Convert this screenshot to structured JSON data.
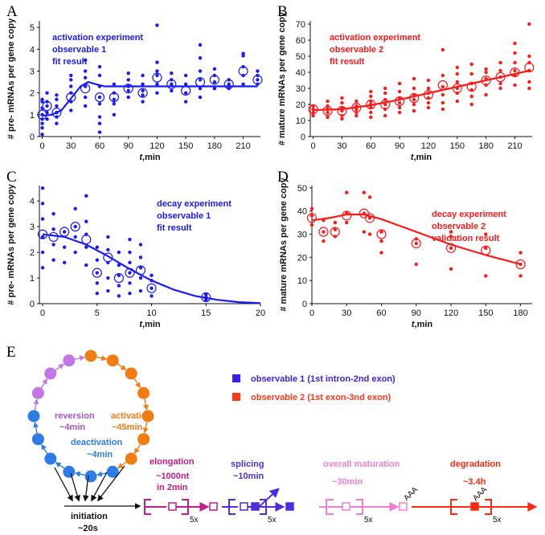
{
  "chart_data": [
    {
      "panel": "A",
      "type": "scatter",
      "color": "#1a1aff",
      "annotation": [
        "activation experiment",
        "observable 1",
        "fit result"
      ],
      "xlabel": "t,min",
      "ylabel": "# pre- mRNAs per gene copy",
      "xlim": [
        -3,
        228
      ],
      "ylim": [
        0,
        5.3
      ],
      "xticks": [
        0,
        30,
        60,
        90,
        120,
        150,
        180,
        210
      ],
      "yticks": [
        0,
        1,
        2,
        3,
        4,
        5
      ],
      "grid": false,
      "replicates": [
        {
          "x": 0,
          "y": [
            0.1,
            0.4,
            0.6,
            0.8,
            1.0,
            1.3,
            1.6,
            1.7
          ]
        },
        {
          "x": 5,
          "y": [
            0.8,
            1.1,
            1.4,
            1.6,
            2.0
          ]
        },
        {
          "x": 15,
          "y": [
            0.6,
            0.9,
            1.1,
            1.4,
            1.7,
            1.9
          ]
        },
        {
          "x": 30,
          "y": [
            1.2,
            1.6,
            2.0,
            2.3,
            2.6,
            2.8
          ]
        },
        {
          "x": 45,
          "y": [
            1.4,
            1.8,
            2.3,
            2.7,
            3.0,
            3.5
          ]
        },
        {
          "x": 60,
          "y": [
            0.2,
            0.6,
            0.9,
            1.5,
            1.8,
            2.3,
            2.8,
            3.2
          ]
        },
        {
          "x": 75,
          "y": [
            1.0,
            1.5,
            1.7,
            2.0,
            2.4
          ]
        },
        {
          "x": 90,
          "y": [
            1.8,
            2.1,
            2.3,
            2.6,
            2.9
          ]
        },
        {
          "x": 105,
          "y": [
            1.6,
            1.9,
            2.1,
            2.4,
            2.8
          ]
        },
        {
          "x": 120,
          "y": [
            2.0,
            2.4,
            2.8,
            3.0,
            3.4,
            5.1
          ]
        },
        {
          "x": 135,
          "y": [
            2.1,
            2.4,
            2.6,
            2.9
          ]
        },
        {
          "x": 150,
          "y": [
            1.6,
            2.0,
            2.4,
            2.8
          ]
        },
        {
          "x": 165,
          "y": [
            1.8,
            2.2,
            2.6,
            3.0,
            3.6,
            4.2
          ]
        },
        {
          "x": 180,
          "y": [
            2.2,
            2.5,
            2.8,
            3.1
          ]
        },
        {
          "x": 195,
          "y": [
            2.2,
            2.4,
            2.6
          ]
        },
        {
          "x": 210,
          "y": [
            2.4,
            2.8,
            3.2,
            3.7,
            3.8
          ]
        },
        {
          "x": 225,
          "y": [
            2.4,
            2.6,
            2.8,
            3.0
          ]
        }
      ],
      "means": [
        {
          "x": 0,
          "y": 1.0
        },
        {
          "x": 5,
          "y": 1.4
        },
        {
          "x": 15,
          "y": 1.1
        },
        {
          "x": 30,
          "y": 1.8
        },
        {
          "x": 45,
          "y": 2.2
        },
        {
          "x": 60,
          "y": 1.8
        },
        {
          "x": 75,
          "y": 1.8
        },
        {
          "x": 90,
          "y": 2.2
        },
        {
          "x": 105,
          "y": 2.0
        },
        {
          "x": 120,
          "y": 2.7
        },
        {
          "x": 135,
          "y": 2.4
        },
        {
          "x": 150,
          "y": 2.1
        },
        {
          "x": 165,
          "y": 2.5
        },
        {
          "x": 180,
          "y": 2.6
        },
        {
          "x": 195,
          "y": 2.4
        },
        {
          "x": 210,
          "y": 3.0
        },
        {
          "x": 225,
          "y": 2.6
        }
      ],
      "fit": [
        {
          "x": 0,
          "y": 0.95
        },
        {
          "x": 10,
          "y": 1.0
        },
        {
          "x": 20,
          "y": 1.2
        },
        {
          "x": 30,
          "y": 1.75
        },
        {
          "x": 40,
          "y": 2.3
        },
        {
          "x": 48,
          "y": 2.5
        },
        {
          "x": 56,
          "y": 2.4
        },
        {
          "x": 65,
          "y": 2.3
        },
        {
          "x": 75,
          "y": 2.3
        },
        {
          "x": 100,
          "y": 2.3
        },
        {
          "x": 150,
          "y": 2.3
        },
        {
          "x": 200,
          "y": 2.3
        },
        {
          "x": 225,
          "y": 2.3
        }
      ]
    },
    {
      "panel": "B",
      "type": "scatter",
      "color": "#ff1a1a",
      "annotation": [
        "activation experiment",
        "observable 2",
        "fit result"
      ],
      "xlabel": "t,min",
      "ylabel": "# mature mRNAs per gene copy",
      "xlim": [
        -3,
        228
      ],
      "ylim": [
        0,
        72
      ],
      "xticks": [
        0,
        30,
        60,
        90,
        120,
        150,
        180,
        210
      ],
      "yticks": [
        0,
        10,
        20,
        30,
        40,
        50,
        60,
        70
      ],
      "grid": false,
      "replicates": [
        {
          "x": 0,
          "y": [
            13,
            15,
            17,
            19
          ]
        },
        {
          "x": 15,
          "y": [
            12,
            15,
            17,
            19,
            22
          ]
        },
        {
          "x": 30,
          "y": [
            11,
            13,
            16,
            18,
            21,
            24
          ]
        },
        {
          "x": 45,
          "y": [
            13,
            15,
            17,
            19,
            22
          ]
        },
        {
          "x": 60,
          "y": [
            12,
            15,
            18,
            20,
            22,
            25,
            28
          ]
        },
        {
          "x": 75,
          "y": [
            13,
            17,
            20,
            23,
            27,
            30
          ]
        },
        {
          "x": 90,
          "y": [
            15,
            18,
            21,
            24,
            28,
            33
          ]
        },
        {
          "x": 105,
          "y": [
            16,
            20,
            23,
            26,
            30,
            36
          ]
        },
        {
          "x": 120,
          "y": [
            18,
            21,
            24,
            27,
            30,
            35
          ]
        },
        {
          "x": 135,
          "y": [
            17,
            21,
            26,
            31,
            38,
            54
          ]
        },
        {
          "x": 150,
          "y": [
            22,
            27,
            30,
            34,
            39,
            43
          ]
        },
        {
          "x": 165,
          "y": [
            20,
            25,
            29,
            33,
            39,
            45
          ]
        },
        {
          "x": 180,
          "y": [
            26,
            32,
            36,
            40,
            42
          ]
        },
        {
          "x": 195,
          "y": [
            30,
            33,
            37,
            41,
            46
          ]
        },
        {
          "x": 210,
          "y": [
            32,
            38,
            41,
            46,
            52,
            58
          ]
        },
        {
          "x": 225,
          "y": [
            30,
            34,
            41,
            46,
            50,
            70
          ]
        }
      ],
      "means": [
        {
          "x": 0,
          "y": 17
        },
        {
          "x": 15,
          "y": 16
        },
        {
          "x": 30,
          "y": 16
        },
        {
          "x": 45,
          "y": 18
        },
        {
          "x": 60,
          "y": 20
        },
        {
          "x": 75,
          "y": 20
        },
        {
          "x": 90,
          "y": 22
        },
        {
          "x": 105,
          "y": 24
        },
        {
          "x": 120,
          "y": 26
        },
        {
          "x": 135,
          "y": 32
        },
        {
          "x": 150,
          "y": 30
        },
        {
          "x": 165,
          "y": 31
        },
        {
          "x": 180,
          "y": 35
        },
        {
          "x": 195,
          "y": 37
        },
        {
          "x": 210,
          "y": 40
        },
        {
          "x": 225,
          "y": 43
        }
      ],
      "fit": [
        {
          "x": 0,
          "y": 16.5
        },
        {
          "x": 30,
          "y": 17
        },
        {
          "x": 60,
          "y": 19.5
        },
        {
          "x": 90,
          "y": 23
        },
        {
          "x": 120,
          "y": 27
        },
        {
          "x": 150,
          "y": 31
        },
        {
          "x": 180,
          "y": 35
        },
        {
          "x": 210,
          "y": 39
        },
        {
          "x": 225,
          "y": 41
        }
      ]
    },
    {
      "panel": "C",
      "type": "scatter",
      "color": "#1a1aff",
      "annotation": [
        "decay experiment",
        "observable 1",
        "fit result"
      ],
      "xlabel": "t,min",
      "ylabel": "# pre- mRNAs per gene copy",
      "xlim": [
        -0.3,
        20
      ],
      "ylim": [
        0,
        4.6
      ],
      "xticks": [
        0,
        5,
        10,
        15,
        20
      ],
      "yticks": [
        0,
        1,
        2,
        3,
        4
      ],
      "grid": false,
      "replicates": [
        {
          "x": 0,
          "y": [
            1.4,
            2.0,
            2.6,
            3.3,
            3.9,
            4.5
          ]
        },
        {
          "x": 1,
          "y": [
            1.7,
            2.3,
            2.9,
            3.5
          ]
        },
        {
          "x": 2,
          "y": [
            1.6,
            2.2,
            2.8
          ]
        },
        {
          "x": 3,
          "y": [
            2.0,
            2.6,
            3.0,
            3.7
          ]
        },
        {
          "x": 4,
          "y": [
            1.5,
            2.2,
            2.7,
            3.2,
            4.2
          ]
        },
        {
          "x": 5,
          "y": [
            0.4,
            0.8,
            1.2,
            1.7,
            2.2
          ]
        },
        {
          "x": 6,
          "y": [
            0.5,
            1.0,
            1.6,
            2.1,
            2.6
          ]
        },
        {
          "x": 7,
          "y": [
            0.3,
            0.7,
            1.1,
            1.5,
            2.0
          ]
        },
        {
          "x": 8,
          "y": [
            0.4,
            0.8,
            1.2,
            1.6,
            2.0,
            2.5
          ]
        },
        {
          "x": 9,
          "y": [
            0.5,
            1.0,
            1.4,
            1.8,
            2.3
          ]
        },
        {
          "x": 10,
          "y": [
            0.3,
            0.6,
            0.9,
            1.1
          ]
        },
        {
          "x": 15,
          "y": [
            0.15,
            0.25,
            0.35
          ]
        }
      ],
      "means": [
        {
          "x": 0,
          "y": 2.7
        },
        {
          "x": 1,
          "y": 2.6
        },
        {
          "x": 2,
          "y": 2.8
        },
        {
          "x": 3,
          "y": 3.0
        },
        {
          "x": 4,
          "y": 2.5
        },
        {
          "x": 5,
          "y": 1.2
        },
        {
          "x": 6,
          "y": 1.8
        },
        {
          "x": 7,
          "y": 1.0
        },
        {
          "x": 8,
          "y": 1.2
        },
        {
          "x": 9,
          "y": 1.3
        },
        {
          "x": 10,
          "y": 0.6
        },
        {
          "x": 15,
          "y": 0.25
        }
      ],
      "fit": [
        {
          "x": 0,
          "y": 2.7
        },
        {
          "x": 2,
          "y": 2.6
        },
        {
          "x": 4,
          "y": 2.3
        },
        {
          "x": 6,
          "y": 1.85
        },
        {
          "x": 8,
          "y": 1.35
        },
        {
          "x": 10,
          "y": 0.9
        },
        {
          "x": 12,
          "y": 0.55
        },
        {
          "x": 14,
          "y": 0.3
        },
        {
          "x": 16,
          "y": 0.15
        },
        {
          "x": 18,
          "y": 0.06
        },
        {
          "x": 20,
          "y": 0.02
        }
      ]
    },
    {
      "panel": "D",
      "type": "scatter",
      "color": "#ff1a1a",
      "annotation": [
        "decay experiment",
        "observable 2",
        "validation result"
      ],
      "xlabel": "t,min",
      "ylabel": "# mature mRNAs per gene copy",
      "xlim": [
        0,
        190
      ],
      "ylim": [
        0,
        51
      ],
      "xticks": [
        0,
        30,
        60,
        90,
        120,
        150,
        180
      ],
      "yticks": [
        0,
        10,
        20,
        30,
        40,
        50
      ],
      "grid": false,
      "replicates": [
        {
          "x": 0,
          "y": [
            34,
            38,
            41
          ]
        },
        {
          "x": 10,
          "y": [
            27,
            31,
            36
          ]
        },
        {
          "x": 20,
          "y": [
            29,
            32,
            35
          ]
        },
        {
          "x": 30,
          "y": [
            35,
            39,
            48
          ]
        },
        {
          "x": 45,
          "y": [
            31,
            39,
            48
          ]
        },
        {
          "x": 50,
          "y": [
            30,
            37,
            46
          ]
        },
        {
          "x": 60,
          "y": [
            22,
            27,
            31
          ]
        },
        {
          "x": 90,
          "y": [
            17,
            26,
            28
          ]
        },
        {
          "x": 120,
          "y": [
            15,
            24,
            29,
            31
          ]
        },
        {
          "x": 150,
          "y": [
            12,
            24,
            30
          ]
        },
        {
          "x": 180,
          "y": [
            12,
            17,
            22
          ]
        }
      ],
      "means": [
        {
          "x": 0,
          "y": 37
        },
        {
          "x": 10,
          "y": 31
        },
        {
          "x": 20,
          "y": 31
        },
        {
          "x": 30,
          "y": 38
        },
        {
          "x": 45,
          "y": 39
        },
        {
          "x": 50,
          "y": 37
        },
        {
          "x": 60,
          "y": 30
        },
        {
          "x": 90,
          "y": 26
        },
        {
          "x": 120,
          "y": 24
        },
        {
          "x": 150,
          "y": 23
        },
        {
          "x": 180,
          "y": 17
        }
      ],
      "fit": [
        {
          "x": 0,
          "y": 36
        },
        {
          "x": 15,
          "y": 37
        },
        {
          "x": 30,
          "y": 38.5
        },
        {
          "x": 45,
          "y": 38.5
        },
        {
          "x": 60,
          "y": 36.5
        },
        {
          "x": 90,
          "y": 31
        },
        {
          "x": 120,
          "y": 25.5
        },
        {
          "x": 150,
          "y": 21
        },
        {
          "x": 180,
          "y": 17
        }
      ]
    }
  ],
  "panel_labels": {
    "a": "A",
    "b": "B",
    "c": "C",
    "d": "D",
    "e": "E"
  },
  "diagram": {
    "cycle": {
      "activation": "activation",
      "activation_time": "~45min",
      "reversion": "reversion",
      "reversion_time": "~4min",
      "deactivation": "deactivation",
      "deactivation_time": "~4min"
    },
    "initiation": "initiation",
    "initiation_time": "~20s",
    "legend_obs1": "observable 1 (1st intron-2nd exon)",
    "legend_obs2": "observable 2 (1st exon-3nd exon)",
    "elongation": "elongation",
    "elongation_detail": "~1000nt",
    "elongation_time": "in 2min",
    "splicing": "splicing",
    "splicing_time": "~10min",
    "maturation": "overall maturation",
    "maturation_time": "~30min",
    "degradation": "degradation",
    "degradation_time": "~3.4h",
    "polyA": "AAA",
    "rep_5x": "5x"
  },
  "colors": {
    "blue": "#1a1aff",
    "red": "#ff1a1a",
    "orange": "#f07c12",
    "violet": "#c376e6",
    "sky": "#2e7ce6",
    "magenta": "#c21c8a",
    "indigo": "#4a2ee0",
    "pink": "#f07fd4",
    "obs1": "#3a1ff0",
    "obs2": "#ff3a1a"
  }
}
